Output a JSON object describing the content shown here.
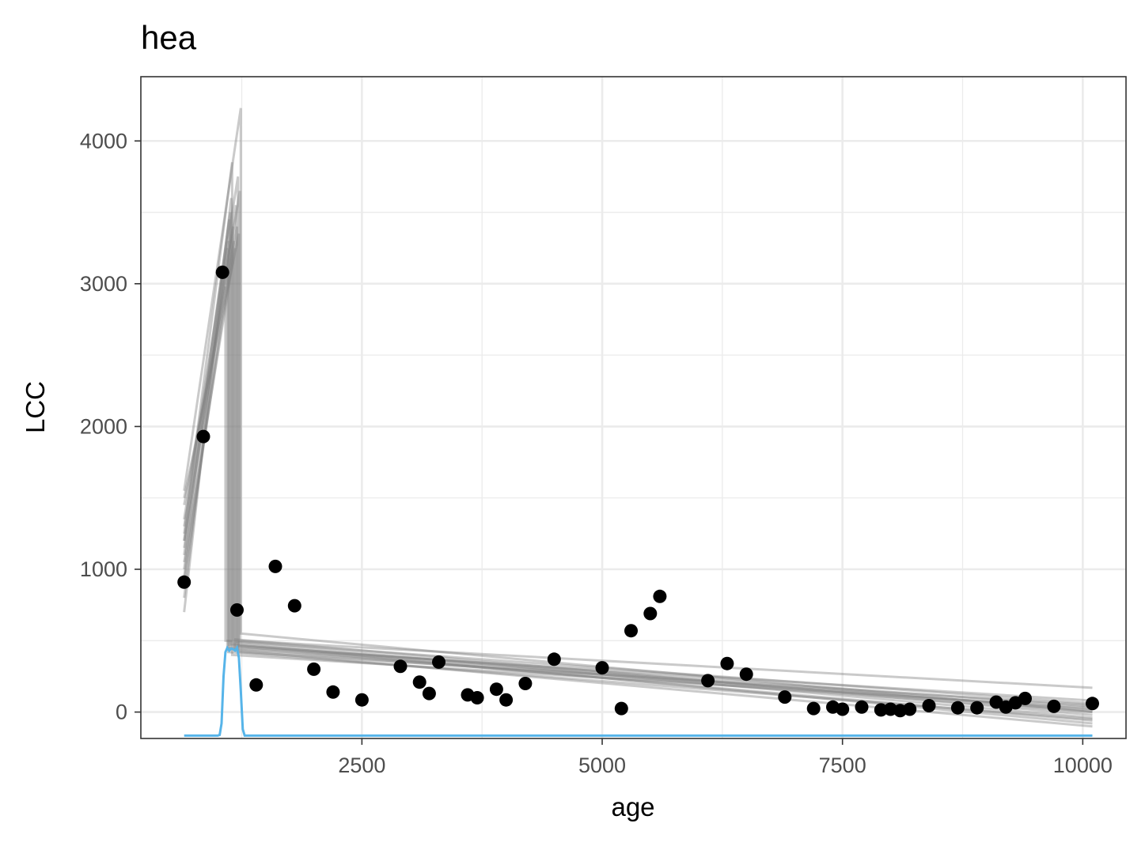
{
  "chart_data": {
    "type": "scatter",
    "title": "hea",
    "xlabel": "age",
    "ylabel": "LCC",
    "xlim": [
      200,
      10450
    ],
    "ylim": [
      -185,
      4450
    ],
    "x_ticks": [
      2500,
      5000,
      7500,
      10000
    ],
    "y_ticks": [
      0,
      1000,
      2000,
      3000,
      4000
    ],
    "x_minor": [
      1250,
      3750,
      6250,
      8750
    ],
    "y_minor": [
      500,
      1500,
      2500,
      3500
    ],
    "grid": true,
    "colors": {
      "points": "#000000",
      "fit_lines": "#808080",
      "breakpoint_density": "#56B4E9",
      "grid": "#EBEBEB",
      "panel_border": "#333333"
    },
    "points": [
      [
        650,
        910
      ],
      [
        850,
        1930
      ],
      [
        1050,
        3080
      ],
      [
        1200,
        715
      ],
      [
        1400,
        190
      ],
      [
        1600,
        1020
      ],
      [
        1800,
        745
      ],
      [
        2000,
        300
      ],
      [
        2200,
        140
      ],
      [
        2500,
        85
      ],
      [
        2900,
        320
      ],
      [
        3100,
        210
      ],
      [
        3200,
        130
      ],
      [
        3300,
        350
      ],
      [
        3600,
        120
      ],
      [
        3700,
        100
      ],
      [
        3900,
        160
      ],
      [
        4000,
        85
      ],
      [
        4200,
        200
      ],
      [
        4500,
        370
      ],
      [
        5000,
        310
      ],
      [
        5200,
        25
      ],
      [
        5300,
        570
      ],
      [
        5500,
        690
      ],
      [
        5600,
        810
      ],
      [
        6100,
        220
      ],
      [
        6300,
        340
      ],
      [
        6500,
        265
      ],
      [
        6900,
        105
      ],
      [
        7200,
        25
      ],
      [
        7400,
        35
      ],
      [
        7500,
        20
      ],
      [
        7700,
        35
      ],
      [
        7900,
        15
      ],
      [
        8000,
        20
      ],
      [
        8100,
        10
      ],
      [
        8200,
        20
      ],
      [
        8400,
        45
      ],
      [
        8700,
        30
      ],
      [
        8900,
        30
      ],
      [
        9100,
        70
      ],
      [
        9200,
        35
      ],
      [
        9300,
        65
      ],
      [
        9400,
        95
      ],
      [
        9700,
        40
      ],
      [
        10100,
        60
      ]
    ],
    "fit_segments": [
      {
        "bp": 1080,
        "y0": 900,
        "peak": 2980,
        "y_after": 500,
        "y_end": 60
      },
      {
        "bp": 1100,
        "y0": 800,
        "peak": 3250,
        "y_after": 450,
        "y_end": 20
      },
      {
        "bp": 1110,
        "y0": 1000,
        "peak": 3300,
        "y_after": 420,
        "y_end": -50
      },
      {
        "bp": 1120,
        "y0": 1100,
        "peak": 3450,
        "y_after": 470,
        "y_end": 40
      },
      {
        "bp": 1130,
        "y0": 1200,
        "peak": 3500,
        "y_after": 440,
        "y_end": 0
      },
      {
        "bp": 1140,
        "y0": 700,
        "peak": 3600,
        "y_after": 480,
        "y_end": -80
      },
      {
        "bp": 1150,
        "y0": 1250,
        "peak": 3850,
        "y_after": 400,
        "y_end": 30
      },
      {
        "bp": 1160,
        "y0": 1300,
        "peak": 3400,
        "y_after": 510,
        "y_end": -20
      },
      {
        "bp": 1170,
        "y0": 950,
        "peak": 3300,
        "y_after": 455,
        "y_end": 80
      },
      {
        "bp": 1180,
        "y0": 1050,
        "peak": 3250,
        "y_after": 430,
        "y_end": -100
      },
      {
        "bp": 1190,
        "y0": 1150,
        "peak": 3550,
        "y_after": 470,
        "y_end": 10
      },
      {
        "bp": 1200,
        "y0": 1450,
        "peak": 3400,
        "y_after": 490,
        "y_end": -40
      },
      {
        "bp": 1210,
        "y0": 1350,
        "peak": 3750,
        "y_after": 420,
        "y_end": 50
      },
      {
        "bp": 1220,
        "y0": 1500,
        "peak": 3350,
        "y_after": 460,
        "y_end": -60
      },
      {
        "bp": 1230,
        "y0": 1200,
        "peak": 3650,
        "y_after": 500,
        "y_end": 170
      },
      {
        "bp": 1240,
        "y0": 1550,
        "peak": 4230,
        "y_after": 550,
        "y_end": 0
      }
    ],
    "breakpoint_density": {
      "baseline": -165,
      "x": [
        650,
        1000,
        1020,
        1040,
        1060,
        1080,
        1100,
        1120,
        1140,
        1160,
        1180,
        1200,
        1220,
        1240,
        1260,
        1280,
        10100
      ],
      "y": [
        -165,
        -165,
        -160,
        -80,
        250,
        420,
        450,
        430,
        445,
        440,
        430,
        450,
        380,
        150,
        -120,
        -165,
        -165
      ]
    }
  }
}
